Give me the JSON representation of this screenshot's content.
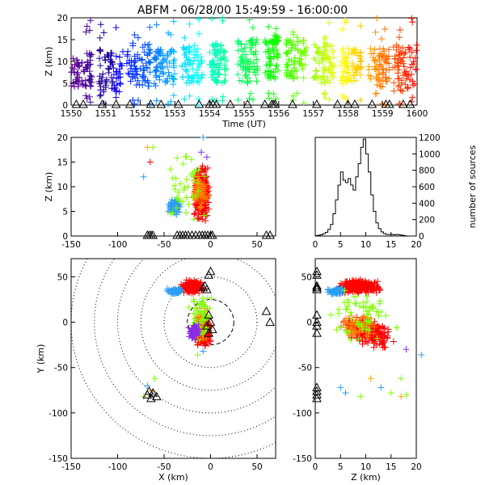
{
  "title": "ABFM - 06/28/00 15:49:59 - 16:00:00",
  "chart_data": [
    {
      "panel": "time-height",
      "type": "scatter",
      "ylabel": "Z (km)",
      "xlabel": "Time (UT)",
      "x_ticks": [
        "1550",
        "1551",
        "1552",
        "1553",
        "1554",
        "1555",
        "1556",
        "1557",
        "1558",
        "1559",
        "1600"
      ],
      "xlim": [
        0,
        10
      ],
      "x_unit": "minutes after 15:50 UT",
      "y_ticks": [
        "0",
        "5",
        "10",
        "15",
        "20"
      ],
      "ylim": [
        0,
        20
      ],
      "color_mode": "rainbow by time (purple at 15:50 to red at 16:00)",
      "bands": [
        {
          "t": [
            0.0,
            0.6
          ],
          "z": [
            4,
            12
          ]
        },
        {
          "t": [
            0.8,
            1.5
          ],
          "z": [
            3,
            13
          ]
        },
        {
          "t": [
            1.6,
            2.3
          ],
          "z": [
            4,
            14
          ]
        },
        {
          "t": [
            2.4,
            3.0
          ],
          "z": [
            4,
            13
          ]
        },
        {
          "t": [
            3.2,
            3.8
          ],
          "z": [
            5,
            14
          ]
        },
        {
          "t": [
            4.0,
            4.5
          ],
          "z": [
            5,
            14
          ]
        },
        {
          "t": [
            4.8,
            5.4
          ],
          "z": [
            5,
            15
          ]
        },
        {
          "t": [
            5.6,
            6.0
          ],
          "z": [
            6,
            16
          ]
        },
        {
          "t": [
            6.2,
            6.8
          ],
          "z": [
            6,
            15
          ]
        },
        {
          "t": [
            7.0,
            7.6
          ],
          "z": [
            5,
            14
          ]
        },
        {
          "t": [
            7.8,
            8.4
          ],
          "z": [
            5,
            13
          ]
        },
        {
          "t": [
            8.6,
            9.2
          ],
          "z": [
            4,
            13
          ]
        },
        {
          "t": [
            9.3,
            10.0
          ],
          "z": [
            3,
            14
          ]
        }
      ],
      "station_markers_t": [
        0.15,
        0.35,
        0.9,
        1.3,
        1.7,
        2.3,
        2.6,
        3.1,
        3.7,
        4.0,
        4.1,
        4.2,
        4.6,
        5.1,
        5.6,
        5.8,
        5.85,
        5.9,
        6.4,
        7.1,
        7.7,
        8.0,
        8.2,
        8.7,
        9.1,
        9.2,
        9.6,
        9.8
      ]
    },
    {
      "panel": "x-z",
      "type": "scatter",
      "ylabel": "Z (km)",
      "x_ticks": [
        "-150",
        "-100",
        "-50",
        "0",
        "50"
      ],
      "xlim": [
        -150,
        70
      ],
      "y_ticks": [
        "0",
        "5",
        "10",
        "15",
        "20"
      ],
      "ylim": [
        0,
        20
      ],
      "clusters": [
        {
          "color": "#ff0000",
          "x": [
            -20,
            0
          ],
          "z": [
            2,
            15
          ]
        },
        {
          "color": "#2a9df4",
          "x": [
            -48,
            -30
          ],
          "z": [
            4,
            8
          ]
        },
        {
          "color": "#ff7f00",
          "x": [
            -22,
            -2
          ],
          "z": [
            5,
            13
          ]
        },
        {
          "color": "#7fff00",
          "x": [
            -55,
            0
          ],
          "z": [
            1,
            19
          ]
        }
      ],
      "station_markers_x": [
        -68,
        -66,
        -64,
        -62,
        -36,
        -33,
        -30,
        -27,
        -24,
        -20,
        -16,
        -12,
        -9,
        -6,
        -3,
        0,
        2,
        60,
        64
      ]
    },
    {
      "panel": "histogram",
      "type": "bar",
      "ylabel": "number of sources",
      "y_ticks": [
        "0",
        "200",
        "400",
        "600",
        "800",
        "1000",
        "1200"
      ],
      "ylim": [
        0,
        1200
      ],
      "x_ticks": [
        "0",
        "5",
        "10",
        "15",
        "20"
      ],
      "xlim": [
        0,
        20
      ],
      "bin_width": 0.5,
      "bin_starts": [
        0,
        0.5,
        1,
        1.5,
        2,
        2.5,
        3,
        3.5,
        4,
        4.5,
        5,
        5.5,
        6,
        6.5,
        7,
        7.5,
        8,
        8.5,
        9,
        9.5,
        10,
        10.5,
        11,
        11.5,
        12,
        12.5,
        13,
        13.5,
        14,
        14.5,
        15,
        15.5,
        16,
        16.5,
        17,
        17.5
      ],
      "values": [
        5,
        10,
        15,
        30,
        45,
        80,
        140,
        270,
        440,
        620,
        780,
        680,
        650,
        700,
        620,
        560,
        720,
        880,
        1080,
        1180,
        1000,
        780,
        500,
        300,
        160,
        90,
        50,
        30,
        20,
        20,
        20,
        15,
        20,
        15,
        10,
        5
      ]
    },
    {
      "panel": "x-y",
      "type": "scatter",
      "xlabel": "X (km)",
      "ylabel": "Y (km)",
      "x_ticks": [
        "-150",
        "-100",
        "-50",
        "0",
        "50"
      ],
      "xlim": [
        -150,
        70
      ],
      "y_ticks": [
        "-150",
        "-100",
        "-50",
        "0",
        "50"
      ],
      "ylim": [
        -150,
        70
      ],
      "range_rings_km": [
        25,
        50,
        75,
        100,
        125,
        150
      ],
      "clusters": [
        {
          "color": "#ff0000",
          "x": [
            -18,
            2
          ],
          "y": [
            -28,
            8
          ]
        },
        {
          "color": "#ff0000",
          "x": [
            -35,
            -5
          ],
          "y": [
            30,
            48
          ]
        },
        {
          "color": "#2a9df4",
          "x": [
            -48,
            -28
          ],
          "y": [
            30,
            38
          ]
        },
        {
          "color": "#ff7f00",
          "x": [
            -20,
            0
          ],
          "y": [
            -25,
            20
          ]
        },
        {
          "color": "#7fff00",
          "x": [
            -25,
            5
          ],
          "y": [
            -30,
            45
          ]
        },
        {
          "color": "#8a2be2",
          "x": [
            -25,
            -10
          ],
          "y": [
            -20,
            0
          ]
        }
      ],
      "stations": [
        [
          -68,
          -80
        ],
        [
          -66,
          -76
        ],
        [
          -64,
          -84
        ],
        [
          -62,
          -78
        ],
        [
          -58,
          -82
        ],
        [
          -8,
          38
        ],
        [
          -6,
          40
        ],
        [
          -4,
          36
        ],
        [
          -2,
          52
        ],
        [
          0,
          56
        ],
        [
          -2,
          8
        ],
        [
          0,
          0
        ],
        [
          -4,
          -4
        ],
        [
          2,
          -8
        ],
        [
          -2,
          -12
        ],
        [
          60,
          12
        ],
        [
          64,
          0
        ]
      ]
    },
    {
      "panel": "z-y",
      "type": "scatter",
      "xlabel": "Z (km)",
      "x_ticks": [
        "0",
        "5",
        "10",
        "15",
        "20"
      ],
      "xlim": [
        0,
        20
      ],
      "y_ticks": [
        "-150",
        "-100",
        "-50",
        "0",
        "50"
      ],
      "ylim": [
        -150,
        70
      ],
      "clusters": [
        {
          "color": "#ff0000",
          "z": [
            4,
            14
          ],
          "y": [
            30,
            48
          ]
        },
        {
          "color": "#ff0000",
          "z": [
            5,
            16
          ],
          "y": [
            -28,
            8
          ]
        },
        {
          "color": "#2a9df4",
          "z": [
            2,
            6
          ],
          "y": [
            30,
            38
          ]
        },
        {
          "color": "#ff7f00",
          "z": [
            4,
            13
          ],
          "y": [
            -20,
            10
          ]
        },
        {
          "color": "#7fff00",
          "z": [
            1,
            17
          ],
          "y": [
            -30,
            50
          ]
        }
      ],
      "stray_points": [
        [
          11,
          -62
        ],
        [
          13,
          -72
        ],
        [
          17,
          -62
        ],
        [
          15,
          -78
        ],
        [
          17,
          -82
        ],
        [
          18,
          -80
        ],
        [
          5,
          -72
        ],
        [
          9,
          -82
        ],
        [
          6,
          -78
        ],
        [
          21,
          -36
        ],
        [
          18,
          -30
        ]
      ],
      "station_markers_y": [
        -80,
        -76,
        -84,
        -72,
        36,
        38,
        40,
        52,
        56,
        8,
        0,
        -4,
        -12
      ]
    }
  ]
}
